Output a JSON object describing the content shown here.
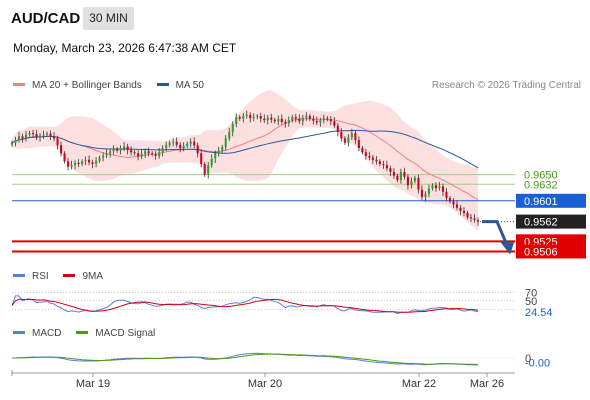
{
  "header": {
    "symbol": "AUD/CAD",
    "timeframe": "30 MIN",
    "datetime": "Monday, March 23, 2026 6:47:38 AM CET"
  },
  "credit": "Research © 2026 Trading Central",
  "legends": {
    "price": [
      {
        "label": "MA 20 + Bollinger Bands",
        "color": "#f08080"
      },
      {
        "label": "MA 50",
        "color": "#2b5797"
      }
    ],
    "rsi": [
      {
        "label": "RSI",
        "color": "#5b7fd6"
      },
      {
        "label": "9MA",
        "color": "#d0021b"
      }
    ],
    "macd": [
      {
        "label": "MACD",
        "color": "#5b7fd6"
      },
      {
        "label": "MACD Signal",
        "color": "#4a9a1a"
      }
    ]
  },
  "price_levels": [
    {
      "label": "0.9650",
      "value": 0.965,
      "color": "#4a9a1a",
      "style": "text"
    },
    {
      "label": "0.9632",
      "value": 0.9632,
      "color": "#4a9a1a",
      "style": "text"
    },
    {
      "label": "0.9601",
      "value": 0.9601,
      "color": "#1a5fd6",
      "style": "box"
    },
    {
      "label": "0.9562",
      "value": 0.9562,
      "color": "#222222",
      "style": "box"
    },
    {
      "label": "0.9525",
      "value": 0.9525,
      "color": "#e00000",
      "style": "box"
    },
    {
      "label": "0.9506",
      "value": 0.9506,
      "color": "#e00000",
      "style": "box"
    }
  ],
  "rsi_labels": [
    {
      "label": "70",
      "value": 70,
      "color": "#444444"
    },
    {
      "label": "50",
      "value": 50,
      "color": "#444444"
    },
    {
      "label": "24.54",
      "value": 24.54,
      "color": "#1a5fd6"
    }
  ],
  "macd_labels": [
    {
      "label": "0",
      "value": 0,
      "color": "#444444"
    },
    {
      "label": "-0.00",
      "value": -0.001,
      "color": "#1a5fd6"
    }
  ],
  "x_axis": [
    "Mar 19",
    "Mar 20",
    "Mar 22",
    "Mar 26"
  ],
  "colors": {
    "up": "#2e9e2e",
    "down": "#d0021b",
    "band": "#fcdcdc",
    "forecast_arrow": "#2b5797"
  },
  "chart_data": {
    "type": "candlestick",
    "ylim": [
      0.949,
      0.979
    ],
    "close_series": [
      0.971,
      0.9715,
      0.9722,
      0.9718,
      0.9725,
      0.9728,
      0.9726,
      0.972,
      0.9723,
      0.9725,
      0.9727,
      0.9722,
      0.9718,
      0.9705,
      0.969,
      0.9675,
      0.9665,
      0.9668,
      0.9672,
      0.967,
      0.9675,
      0.9678,
      0.9673,
      0.967,
      0.9676,
      0.9682,
      0.9686,
      0.969,
      0.9694,
      0.9698,
      0.9695,
      0.9699,
      0.9703,
      0.9696,
      0.9692,
      0.969,
      0.9684,
      0.9689,
      0.9694,
      0.969,
      0.9688,
      0.9685,
      0.9692,
      0.97,
      0.9705,
      0.971,
      0.9712,
      0.9706,
      0.97,
      0.9704,
      0.9708,
      0.9712,
      0.9705,
      0.969,
      0.967,
      0.965,
      0.9668,
      0.968,
      0.969,
      0.9695,
      0.9702,
      0.9718,
      0.973,
      0.9745,
      0.9758,
      0.9755,
      0.976,
      0.9762,
      0.9756,
      0.9758,
      0.976,
      0.9755,
      0.9752,
      0.9757,
      0.9753,
      0.975,
      0.9755,
      0.9749,
      0.9746,
      0.9752,
      0.9758,
      0.9755,
      0.975,
      0.9757,
      0.976,
      0.9755,
      0.9751,
      0.9748,
      0.9752,
      0.9756,
      0.9754,
      0.975,
      0.9742,
      0.973,
      0.9718,
      0.971,
      0.972,
      0.9728,
      0.9715,
      0.97,
      0.9692,
      0.9685,
      0.9682,
      0.9678,
      0.9675,
      0.967,
      0.9668,
      0.9662,
      0.9655,
      0.9648,
      0.964,
      0.9655,
      0.9646,
      0.963,
      0.9638,
      0.9644,
      0.9622,
      0.9608,
      0.9614,
      0.9624,
      0.963,
      0.9625,
      0.9628,
      0.9618,
      0.9606,
      0.96,
      0.9594,
      0.9588,
      0.9582,
      0.9578,
      0.957,
      0.9568,
      0.9565,
      0.9562
    ],
    "forecast_target": 0.9506
  }
}
